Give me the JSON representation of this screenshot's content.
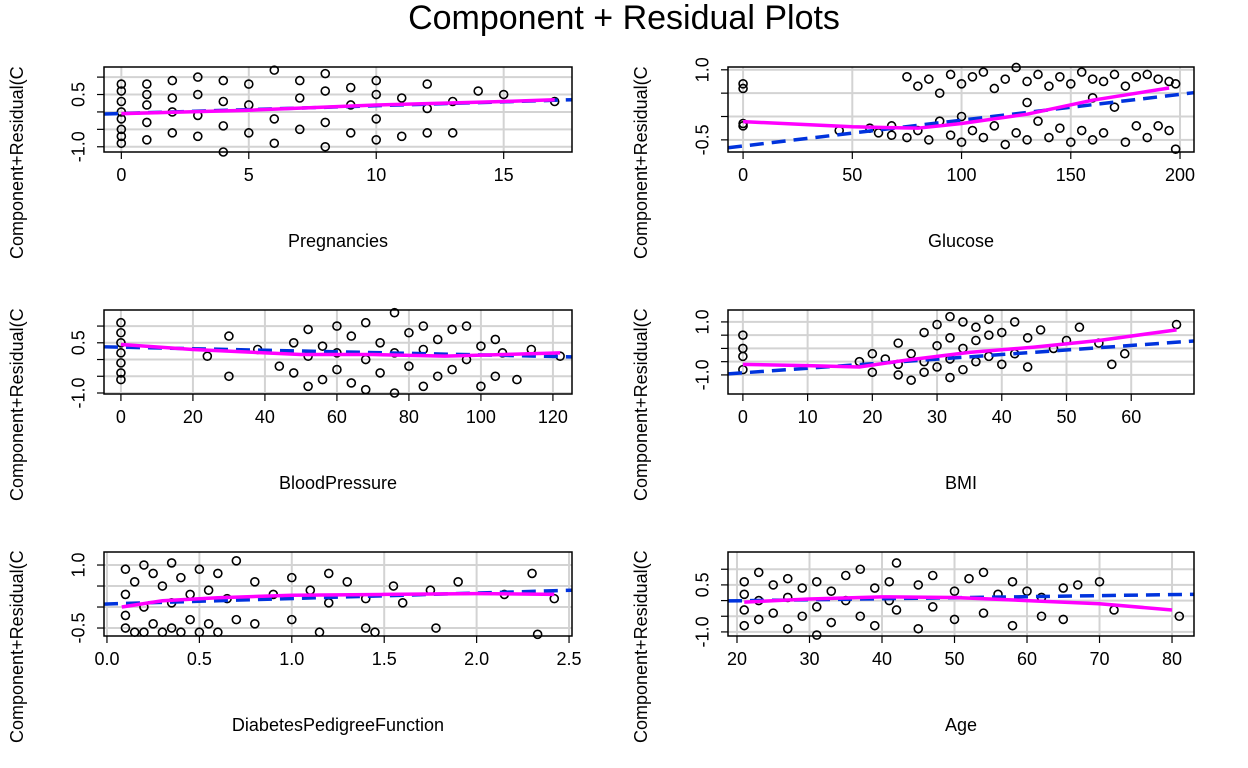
{
  "title": "Component + Residual Plots",
  "chart_data": [
    {
      "type": "scatter",
      "xlabel": "Pregnancies",
      "ylabel": "Component+Residual(C",
      "xlim": [
        -0.68,
        17.68
      ],
      "ylim": [
        -1.15,
        1.29
      ],
      "xticks": [
        0,
        5,
        10,
        15
      ],
      "yticks": [
        {
          "value": -1,
          "label": "-1.0"
        },
        0.5
      ],
      "ygrid": [
        -1,
        -0.5,
        0,
        0.5,
        1
      ],
      "grid": true,
      "point_color": "#000000",
      "x": [
        0,
        0,
        0,
        0,
        0,
        0,
        0,
        0,
        1,
        1,
        1,
        1,
        1,
        2,
        2,
        2,
        2,
        3,
        3,
        3,
        3,
        4,
        4,
        4,
        4,
        5,
        5,
        5,
        6,
        6,
        6,
        7,
        7,
        7,
        8,
        8,
        8,
        8,
        9,
        9,
        9,
        10,
        10,
        10,
        10,
        11,
        11,
        12,
        12,
        12,
        13,
        13,
        14,
        15,
        17
      ],
      "y": [
        -0.9,
        -0.5,
        -0.2,
        0,
        0.3,
        0.6,
        0.8,
        -0.7,
        -0.8,
        -0.3,
        0.2,
        0.5,
        0.8,
        -0.6,
        0,
        0.4,
        0.9,
        -0.7,
        -0.1,
        0.5,
        1.0,
        -1.15,
        -0.4,
        0.3,
        0.9,
        -0.6,
        0.2,
        0.8,
        -0.9,
        -0.2,
        1.2,
        -0.5,
        0.4,
        0.9,
        -1.0,
        -0.3,
        0.6,
        1.1,
        -0.6,
        0.2,
        0.7,
        -0.8,
        -0.2,
        0.5,
        0.9,
        -0.7,
        0.4,
        -0.6,
        0.1,
        0.8,
        -0.6,
        0.3,
        0.6,
        0.5,
        0.3
      ],
      "fit": {
        "color": "#0033dd",
        "dashed": true,
        "x": [
          -0.68,
          17.68
        ],
        "y": [
          -0.06,
          0.35
        ]
      },
      "smooth": {
        "color": "#ff00ff",
        "dashed": false,
        "x": [
          0,
          5,
          10,
          15,
          17
        ],
        "y": [
          -0.05,
          0.05,
          0.2,
          0.3,
          0.35
        ]
      }
    },
    {
      "type": "scatter",
      "xlabel": "Glucose",
      "ylabel": "Component+Residual(C",
      "xlim": [
        -6.9,
        206.4
      ],
      "ylim": [
        -0.76,
        1.06
      ],
      "xticks": [
        0,
        50,
        100,
        150,
        200
      ],
      "yticks": [
        -0.5,
        {
          "value": 1,
          "label": "1.0"
        }
      ],
      "ygrid": [
        -0.5,
        0,
        0.5,
        1
      ],
      "grid": true,
      "point_color": "#000000",
      "x": [
        0,
        0,
        0,
        0,
        44,
        58,
        62,
        68,
        68,
        75,
        75,
        80,
        80,
        85,
        85,
        90,
        90,
        95,
        95,
        100,
        100,
        100,
        105,
        105,
        110,
        110,
        115,
        115,
        120,
        120,
        125,
        125,
        130,
        130,
        130,
        135,
        135,
        140,
        140,
        145,
        145,
        150,
        150,
        155,
        155,
        160,
        160,
        160,
        165,
        165,
        170,
        170,
        175,
        175,
        180,
        180,
        185,
        185,
        190,
        190,
        195,
        195,
        198,
        198
      ],
      "y": [
        0.7,
        0.6,
        -0.2,
        -0.15,
        -0.3,
        -0.25,
        -0.35,
        -0.4,
        -0.2,
        0.85,
        -0.45,
        0.65,
        -0.3,
        0.8,
        -0.5,
        0.5,
        -0.1,
        0.9,
        -0.4,
        0.7,
        -0.55,
        0.0,
        0.85,
        -0.3,
        0.95,
        -0.45,
        0.6,
        -0.2,
        0.8,
        -0.6,
        1.05,
        -0.35,
        0.75,
        -0.5,
        0.3,
        0.9,
        -0.1,
        0.65,
        -0.45,
        0.85,
        -0.25,
        0.7,
        -0.55,
        0.95,
        -0.3,
        0.8,
        -0.5,
        0.4,
        0.75,
        -0.35,
        0.9,
        0.2,
        0.65,
        -0.55,
        0.85,
        -0.2,
        0.9,
        -0.45,
        0.8,
        -0.2,
        0.75,
        -0.3,
        0.7,
        -0.7
      ],
      "fit": {
        "color": "#0033dd",
        "dashed": true,
        "x": [
          -6.9,
          206.4
        ],
        "y": [
          -0.67,
          0.51
        ]
      },
      "smooth": {
        "color": "#ff00ff",
        "dashed": false,
        "x": [
          0,
          50,
          80,
          100,
          130,
          160,
          195
        ],
        "y": [
          -0.11,
          -0.22,
          -0.25,
          -0.15,
          0.05,
          0.35,
          0.61
        ]
      }
    },
    {
      "type": "scatter",
      "xlabel": "BloodPressure",
      "ylabel": "Component+Residual(C",
      "xlim": [
        -4.7,
        125.3
      ],
      "ylim": [
        -1.03,
        1.48
      ],
      "xticks": [
        0,
        20,
        40,
        60,
        80,
        100,
        120
      ],
      "yticks": [
        {
          "value": -1,
          "label": "-1.0"
        },
        0.5
      ],
      "ygrid": [
        -1,
        -0.5,
        0,
        0.5,
        1
      ],
      "grid": true,
      "point_color": "#000000",
      "x": [
        0,
        0,
        0,
        0,
        0,
        0,
        0,
        24,
        30,
        30,
        38,
        44,
        48,
        48,
        52,
        52,
        52,
        56,
        56,
        60,
        60,
        60,
        64,
        64,
        68,
        68,
        68,
        72,
        72,
        76,
        76,
        76,
        80,
        80,
        84,
        84,
        84,
        88,
        88,
        92,
        92,
        96,
        96,
        100,
        100,
        104,
        104,
        106,
        110,
        114,
        122
      ],
      "y": [
        1.1,
        0.8,
        0.5,
        0.2,
        -0.1,
        -0.4,
        -0.6,
        0.1,
        0.7,
        -0.5,
        0.3,
        -0.2,
        0.5,
        -0.4,
        0.9,
        0.1,
        -0.8,
        0.4,
        -0.6,
        1.0,
        0.2,
        -0.3,
        0.7,
        -0.7,
        1.1,
        0.0,
        -0.9,
        0.5,
        -0.4,
        1.4,
        0.2,
        -1.0,
        0.8,
        -0.2,
        1.0,
        0.3,
        -0.8,
        0.6,
        -0.5,
        0.9,
        -0.3,
        1.0,
        0.0,
        0.4,
        -0.8,
        0.6,
        -0.5,
        0.2,
        -0.6,
        0.3,
        0.1
      ],
      "fit": {
        "color": "#0033dd",
        "dashed": true,
        "x": [
          -4.7,
          125.3
        ],
        "y": [
          0.38,
          0.08
        ]
      },
      "smooth": {
        "color": "#ff00ff",
        "dashed": false,
        "x": [
          0,
          20,
          50,
          70,
          90,
          122
        ],
        "y": [
          0.45,
          0.3,
          0.15,
          0.15,
          0.1,
          0.2
        ]
      }
    },
    {
      "type": "scatter",
      "xlabel": "BMI",
      "ylabel": "Component+Residual(C",
      "xlim": [
        -2.3,
        69.7
      ],
      "ylim": [
        -1.72,
        1.45
      ],
      "xticks": [
        0,
        10,
        20,
        30,
        40,
        50,
        60
      ],
      "yticks": [
        {
          "value": -1,
          "label": "-1.0"
        },
        {
          "value": 1,
          "label": "1.0"
        }
      ],
      "ygrid": [
        -1,
        -0.5,
        0,
        0.5,
        1
      ],
      "grid": true,
      "point_color": "#000000",
      "x": [
        0,
        0,
        0,
        0,
        18,
        20,
        20,
        22,
        24,
        24,
        24,
        26,
        26,
        28,
        28,
        28,
        30,
        30,
        30,
        32,
        32,
        32,
        32,
        34,
        34,
        34,
        36,
        36,
        36,
        38,
        38,
        38,
        40,
        40,
        42,
        42,
        44,
        44,
        46,
        48,
        50,
        52,
        55,
        57,
        59,
        67
      ],
      "y": [
        0.5,
        0.0,
        -0.3,
        -0.8,
        -0.5,
        -0.2,
        -0.9,
        -0.4,
        0.2,
        -1.0,
        -0.6,
        -0.2,
        -1.2,
        0.6,
        -0.5,
        -0.9,
        0.9,
        0.1,
        -0.7,
        1.2,
        0.4,
        -0.4,
        -1.1,
        1.0,
        0.0,
        -0.8,
        0.8,
        0.3,
        -0.5,
        1.1,
        0.5,
        -0.3,
        0.6,
        -0.6,
        1.0,
        -0.2,
        0.4,
        -0.7,
        0.7,
        0.0,
        0.3,
        0.8,
        0.2,
        -0.6,
        -0.2,
        0.9
      ],
      "fit": {
        "color": "#0033dd",
        "dashed": true,
        "x": [
          -2.3,
          69.7
        ],
        "y": [
          -0.96,
          0.28
        ]
      },
      "smooth": {
        "color": "#ff00ff",
        "dashed": false,
        "x": [
          0,
          10,
          18,
          25,
          35,
          45,
          55,
          67
        ],
        "y": [
          -0.6,
          -0.65,
          -0.7,
          -0.45,
          -0.15,
          0.05,
          0.3,
          0.7
        ]
      }
    },
    {
      "type": "scatter",
      "xlabel": "DiabetesPedigreeFunction",
      "ylabel": "Component+Residual(C",
      "xlim": [
        -0.016,
        2.516
      ],
      "ylim": [
        -0.69,
        1.31
      ],
      "xticks": [
        {
          "value": 0,
          "label": "0.0"
        },
        0.5,
        {
          "value": 1,
          "label": "1.0"
        },
        1.5,
        {
          "value": 2,
          "label": "2.0"
        },
        2.5
      ],
      "yticks": [
        -0.5,
        {
          "value": 1,
          "label": "1.0"
        }
      ],
      "ygrid": [
        -0.5,
        0,
        0.5,
        1
      ],
      "grid": true,
      "point_color": "#000000",
      "x": [
        0.1,
        0.1,
        0.1,
        0.1,
        0.15,
        0.15,
        0.2,
        0.2,
        0.2,
        0.25,
        0.25,
        0.3,
        0.3,
        0.35,
        0.35,
        0.35,
        0.4,
        0.4,
        0.45,
        0.45,
        0.5,
        0.5,
        0.55,
        0.55,
        0.6,
        0.6,
        0.65,
        0.7,
        0.7,
        0.8,
        0.8,
        0.9,
        1.0,
        1.0,
        1.1,
        1.15,
        1.2,
        1.2,
        1.3,
        1.4,
        1.4,
        1.45,
        1.55,
        1.6,
        1.75,
        1.78,
        1.9,
        2.15,
        2.3,
        2.33,
        2.42
      ],
      "y": [
        0.9,
        0.3,
        -0.2,
        -0.5,
        0.6,
        -0.6,
        1.0,
        0.0,
        -0.6,
        0.8,
        -0.4,
        0.5,
        -0.6,
        1.05,
        0.1,
        -0.5,
        0.7,
        -0.6,
        0.3,
        -0.3,
        0.9,
        -0.6,
        0.4,
        -0.4,
        0.8,
        -0.6,
        0.2,
        1.1,
        -0.3,
        0.6,
        -0.4,
        0.3,
        0.7,
        -0.3,
        0.4,
        -0.6,
        0.8,
        0.1,
        0.6,
        0.2,
        -0.5,
        -0.6,
        0.5,
        0.1,
        0.4,
        -0.5,
        0.6,
        0.3,
        0.8,
        -0.65,
        0.2
      ],
      "fit": {
        "color": "#0033dd",
        "dashed": true,
        "x": [
          -0.016,
          2.516
        ],
        "y": [
          0.07,
          0.4
        ]
      },
      "smooth": {
        "color": "#ff00ff",
        "dashed": false,
        "x": [
          0.08,
          0.3,
          0.6,
          1.0,
          1.5,
          2.0,
          2.42
        ],
        "y": [
          0.0,
          0.15,
          0.22,
          0.28,
          0.3,
          0.32,
          0.3
        ]
      }
    },
    {
      "type": "scatter",
      "xlabel": "Age",
      "ylabel": "Component+Residual(C",
      "xlim": [
        18.76,
        83.03
      ],
      "ylim": [
        -1.13,
        1.55
      ],
      "xticks": [
        20,
        30,
        40,
        50,
        60,
        70,
        80
      ],
      "yticks": [
        {
          "value": -1,
          "label": "-1.0"
        },
        0.5
      ],
      "ygrid": [
        -1,
        -0.5,
        0,
        0.5,
        1
      ],
      "grid": true,
      "point_color": "#000000",
      "x": [
        21,
        21,
        21,
        21,
        23,
        23,
        23,
        25,
        25,
        27,
        27,
        27,
        29,
        29,
        31,
        31,
        31,
        33,
        33,
        35,
        35,
        37,
        37,
        39,
        39,
        41,
        41,
        42,
        42,
        45,
        45,
        47,
        47,
        50,
        50,
        52,
        54,
        54,
        56,
        58,
        58,
        60,
        62,
        62,
        65,
        65,
        67,
        70,
        72,
        81
      ],
      "y": [
        0.6,
        0.2,
        -0.3,
        -0.8,
        0.9,
        0.0,
        -0.6,
        0.5,
        -0.4,
        0.7,
        -0.9,
        0.1,
        0.4,
        -0.5,
        0.6,
        -0.2,
        -1.1,
        0.3,
        -0.7,
        0.8,
        0.0,
        1.0,
        -0.5,
        0.4,
        -0.8,
        0.6,
        0.0,
        1.2,
        -0.3,
        0.5,
        -0.9,
        0.8,
        -0.2,
        0.3,
        -0.6,
        0.7,
        0.9,
        -0.4,
        0.2,
        0.6,
        -0.8,
        0.3,
        0.1,
        -0.5,
        0.4,
        -0.6,
        0.5,
        0.6,
        -0.3,
        -0.5
      ],
      "fit": {
        "color": "#0033dd",
        "dashed": true,
        "x": [
          18.76,
          83.03
        ],
        "y": [
          -0.01,
          0.2
        ]
      },
      "smooth": {
        "color": "#ff00ff",
        "dashed": false,
        "x": [
          21,
          30,
          40,
          50,
          60,
          70,
          80
        ],
        "y": [
          -0.05,
          0.05,
          0.12,
          0.1,
          0.0,
          -0.1,
          -0.3
        ]
      }
    }
  ]
}
